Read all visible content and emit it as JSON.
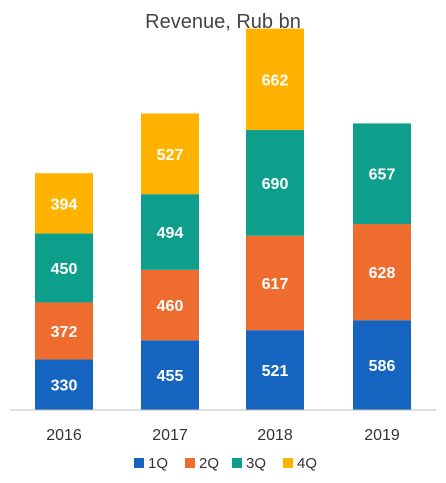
{
  "chart_data": {
    "type": "bar",
    "stacked": true,
    "title": "Revenue, Rub bn",
    "xlabel": "",
    "ylabel": "",
    "categories": [
      "2016",
      "2017",
      "2018",
      "2019"
    ],
    "series": [
      {
        "name": "1Q",
        "color": "#1565C0",
        "values": [
          330,
          455,
          521,
          586
        ]
      },
      {
        "name": "2Q",
        "color": "#EF6C2F",
        "values": [
          372,
          460,
          617,
          628
        ]
      },
      {
        "name": "3Q",
        "color": "#0E9E8C",
        "values": [
          450,
          494,
          690,
          657
        ]
      },
      {
        "name": "4Q",
        "color": "#FFB300",
        "values": [
          394,
          527,
          662,
          null
        ]
      }
    ],
    "ylim": [
      0,
      2520
    ],
    "grid": false,
    "legend": "bottom",
    "data_labels": true
  }
}
